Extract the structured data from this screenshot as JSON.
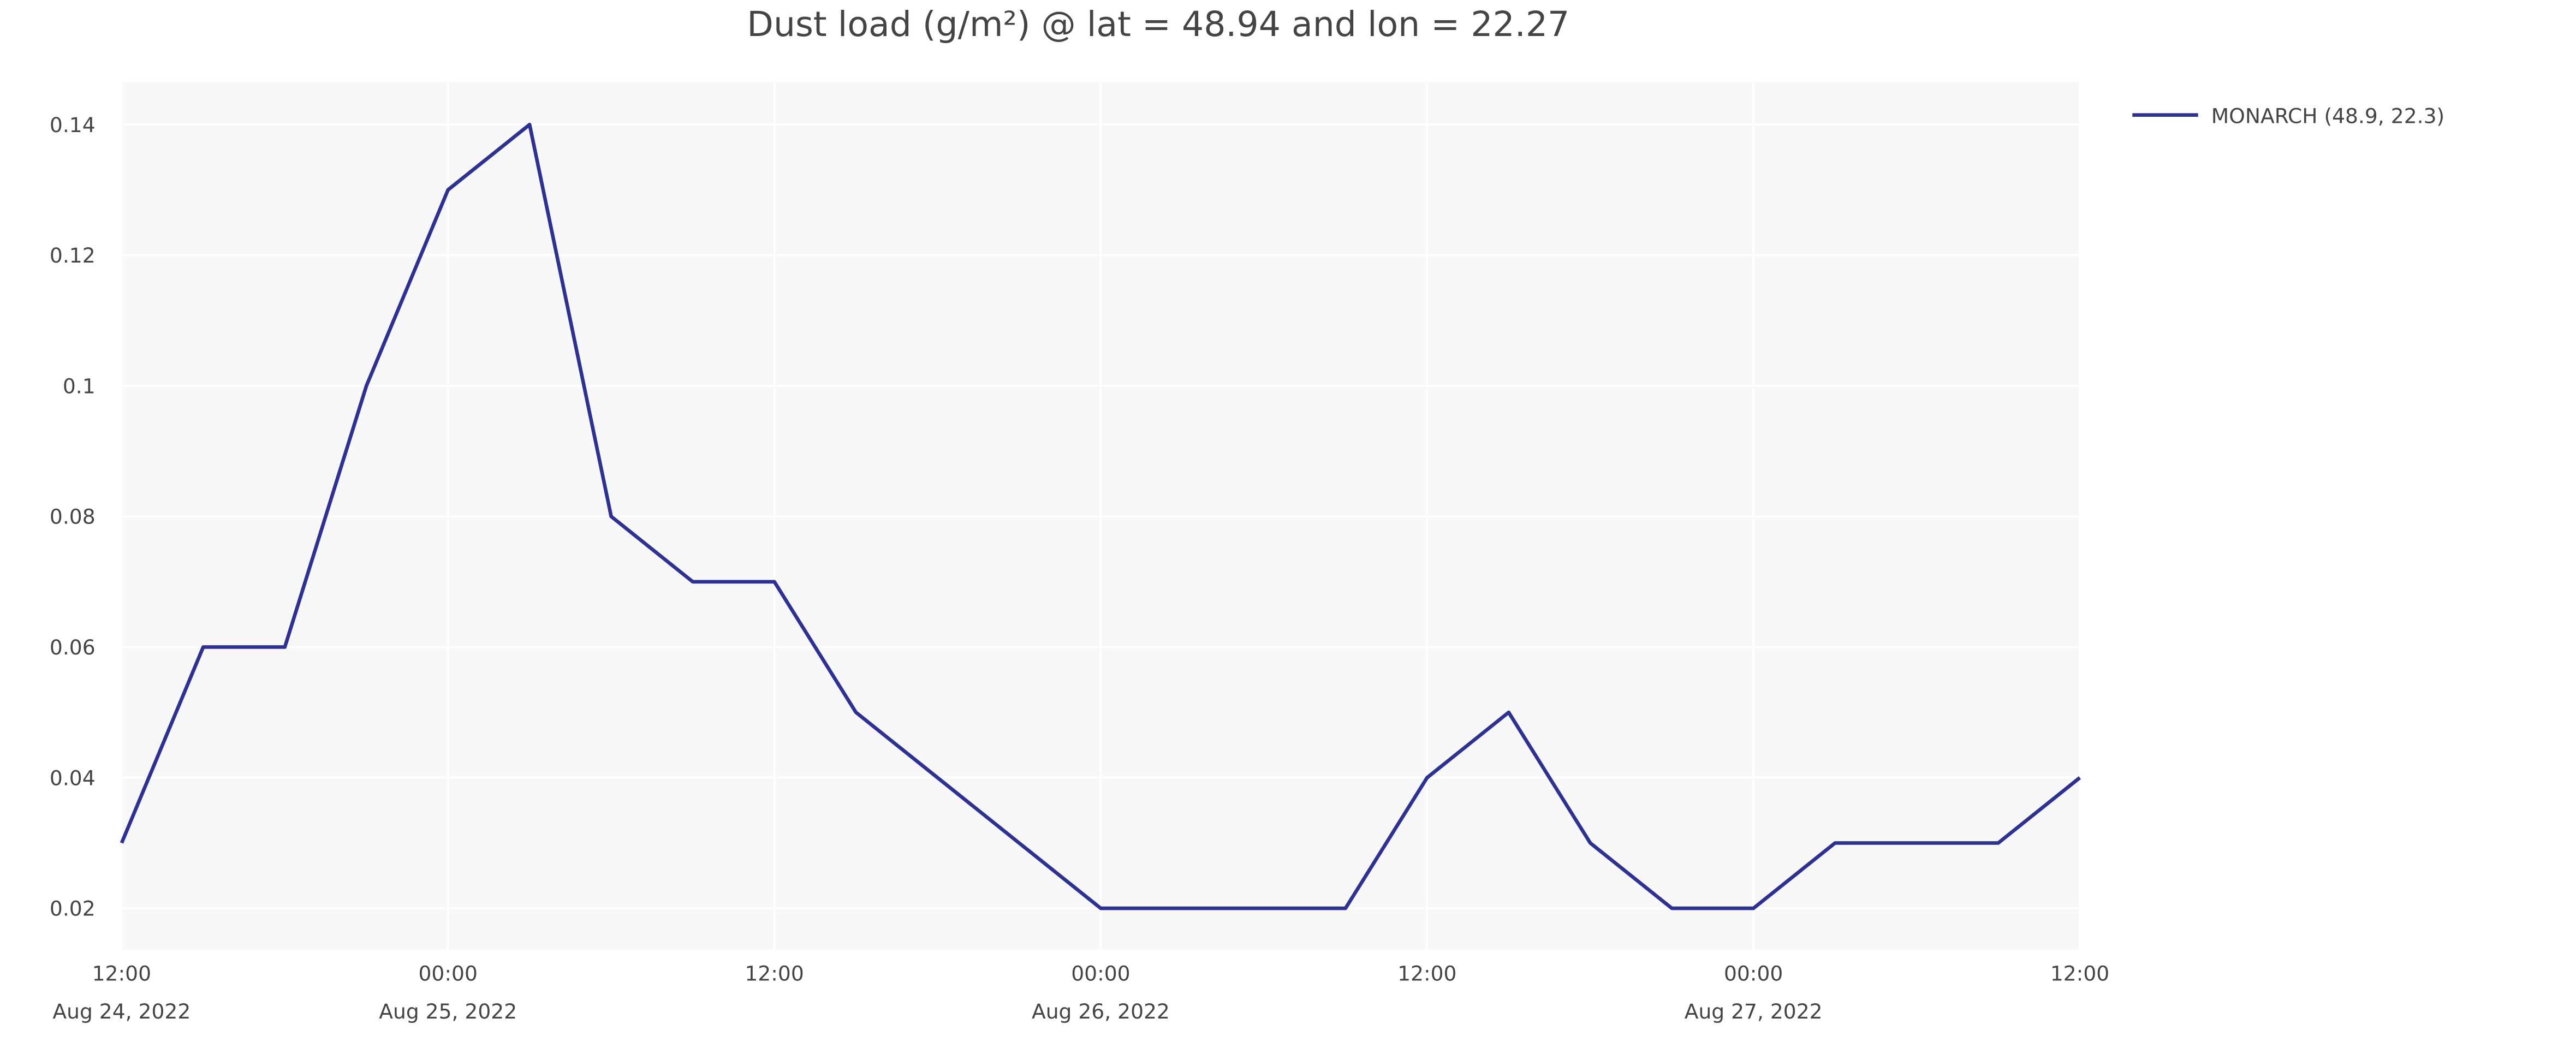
{
  "chart_data": {
    "type": "line",
    "title": "Dust load (g/m²) @ lat = 48.94 and lon = 22.27",
    "x": [
      "2022-08-24T12:00",
      "2022-08-24T15:00",
      "2022-08-24T18:00",
      "2022-08-24T21:00",
      "2022-08-25T00:00",
      "2022-08-25T03:00",
      "2022-08-25T06:00",
      "2022-08-25T09:00",
      "2022-08-25T12:00",
      "2022-08-25T15:00",
      "2022-08-25T18:00",
      "2022-08-25T21:00",
      "2022-08-26T00:00",
      "2022-08-26T03:00",
      "2022-08-26T06:00",
      "2022-08-26T09:00",
      "2022-08-26T12:00",
      "2022-08-26T15:00",
      "2022-08-26T18:00",
      "2022-08-26T21:00",
      "2022-08-27T00:00",
      "2022-08-27T03:00",
      "2022-08-27T06:00",
      "2022-08-27T09:00",
      "2022-08-27T12:00"
    ],
    "series": [
      {
        "name": "MONARCH (48.9, 22.3)",
        "color": "#2e3192",
        "values": [
          0.03,
          0.06,
          0.06,
          0.1,
          0.13,
          0.14,
          0.08,
          0.07,
          0.07,
          0.05,
          0.04,
          0.03,
          0.02,
          0.02,
          0.02,
          0.02,
          0.04,
          0.05,
          0.03,
          0.02,
          0.02,
          0.03,
          0.03,
          0.03,
          0.04
        ]
      }
    ],
    "xlim": [
      "2022-08-24T12:00",
      "2022-08-27T12:00"
    ],
    "xticks": [
      {
        "value": "2022-08-24T12:00",
        "label": "12:00\nAug 24, 2022"
      },
      {
        "value": "2022-08-25T00:00",
        "label": "00:00\nAug 25, 2022"
      },
      {
        "value": "2022-08-25T12:00",
        "label": "12:00"
      },
      {
        "value": "2022-08-26T00:00",
        "label": "00:00\nAug 26, 2022"
      },
      {
        "value": "2022-08-26T12:00",
        "label": "12:00"
      },
      {
        "value": "2022-08-27T00:00",
        "label": "00:00\nAug 27, 2022"
      },
      {
        "value": "2022-08-27T12:00",
        "label": "12:00"
      }
    ],
    "ylim": [
      0.0137,
      0.1465
    ],
    "yticks": [
      0.02,
      0.04,
      0.06,
      0.08,
      0.1,
      0.12,
      0.14
    ],
    "grid": true,
    "legend": "top-right"
  }
}
